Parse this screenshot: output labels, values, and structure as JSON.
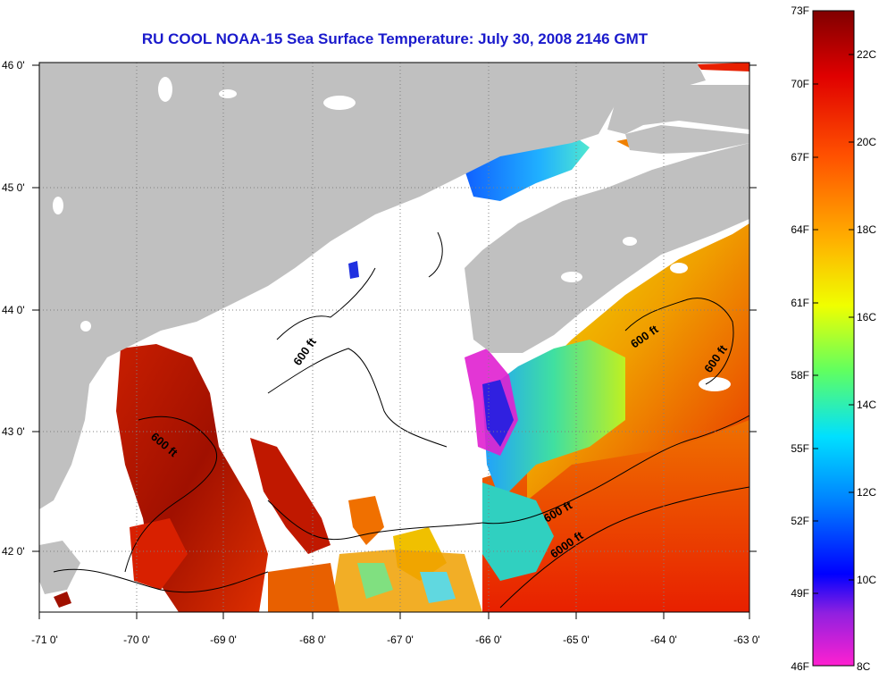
{
  "title": "RU COOL  NOAA-15  Sea Surface Temperature:  July 30, 2008 2146 GMT",
  "axes": {
    "lon_labels": [
      "-71 0'",
      "-70 0'",
      "-69 0'",
      "-68 0'",
      "-67 0'",
      "-66 0'",
      "-65 0'",
      "-64 0'",
      "-63 0'"
    ],
    "lat_labels": [
      "46 0'",
      "45 0'",
      "44 0'",
      "43 0'",
      "42 0'"
    ],
    "lon_range": [
      -71,
      -63
    ],
    "lat_range": [
      41.5,
      46.1
    ]
  },
  "contours": {
    "labels": [
      "600 ft",
      "600 ft",
      "600 ft",
      "600 ft",
      "600 ft",
      "6000 ft"
    ]
  },
  "colorbar": {
    "fahrenheit_labels": [
      "73F",
      "70F",
      "67F",
      "64F",
      "61F",
      "58F",
      "55F",
      "52F",
      "49F",
      "46F"
    ],
    "celsius_labels": [
      "22C",
      "20C",
      "18C",
      "16C",
      "14C",
      "12C",
      "10C",
      "8C"
    ],
    "range_f": [
      46,
      73
    ],
    "range_c": [
      8,
      23
    ]
  },
  "colors": {
    "land": "#c0c0c0",
    "title": "#1a1acc",
    "grid": "#808080"
  }
}
